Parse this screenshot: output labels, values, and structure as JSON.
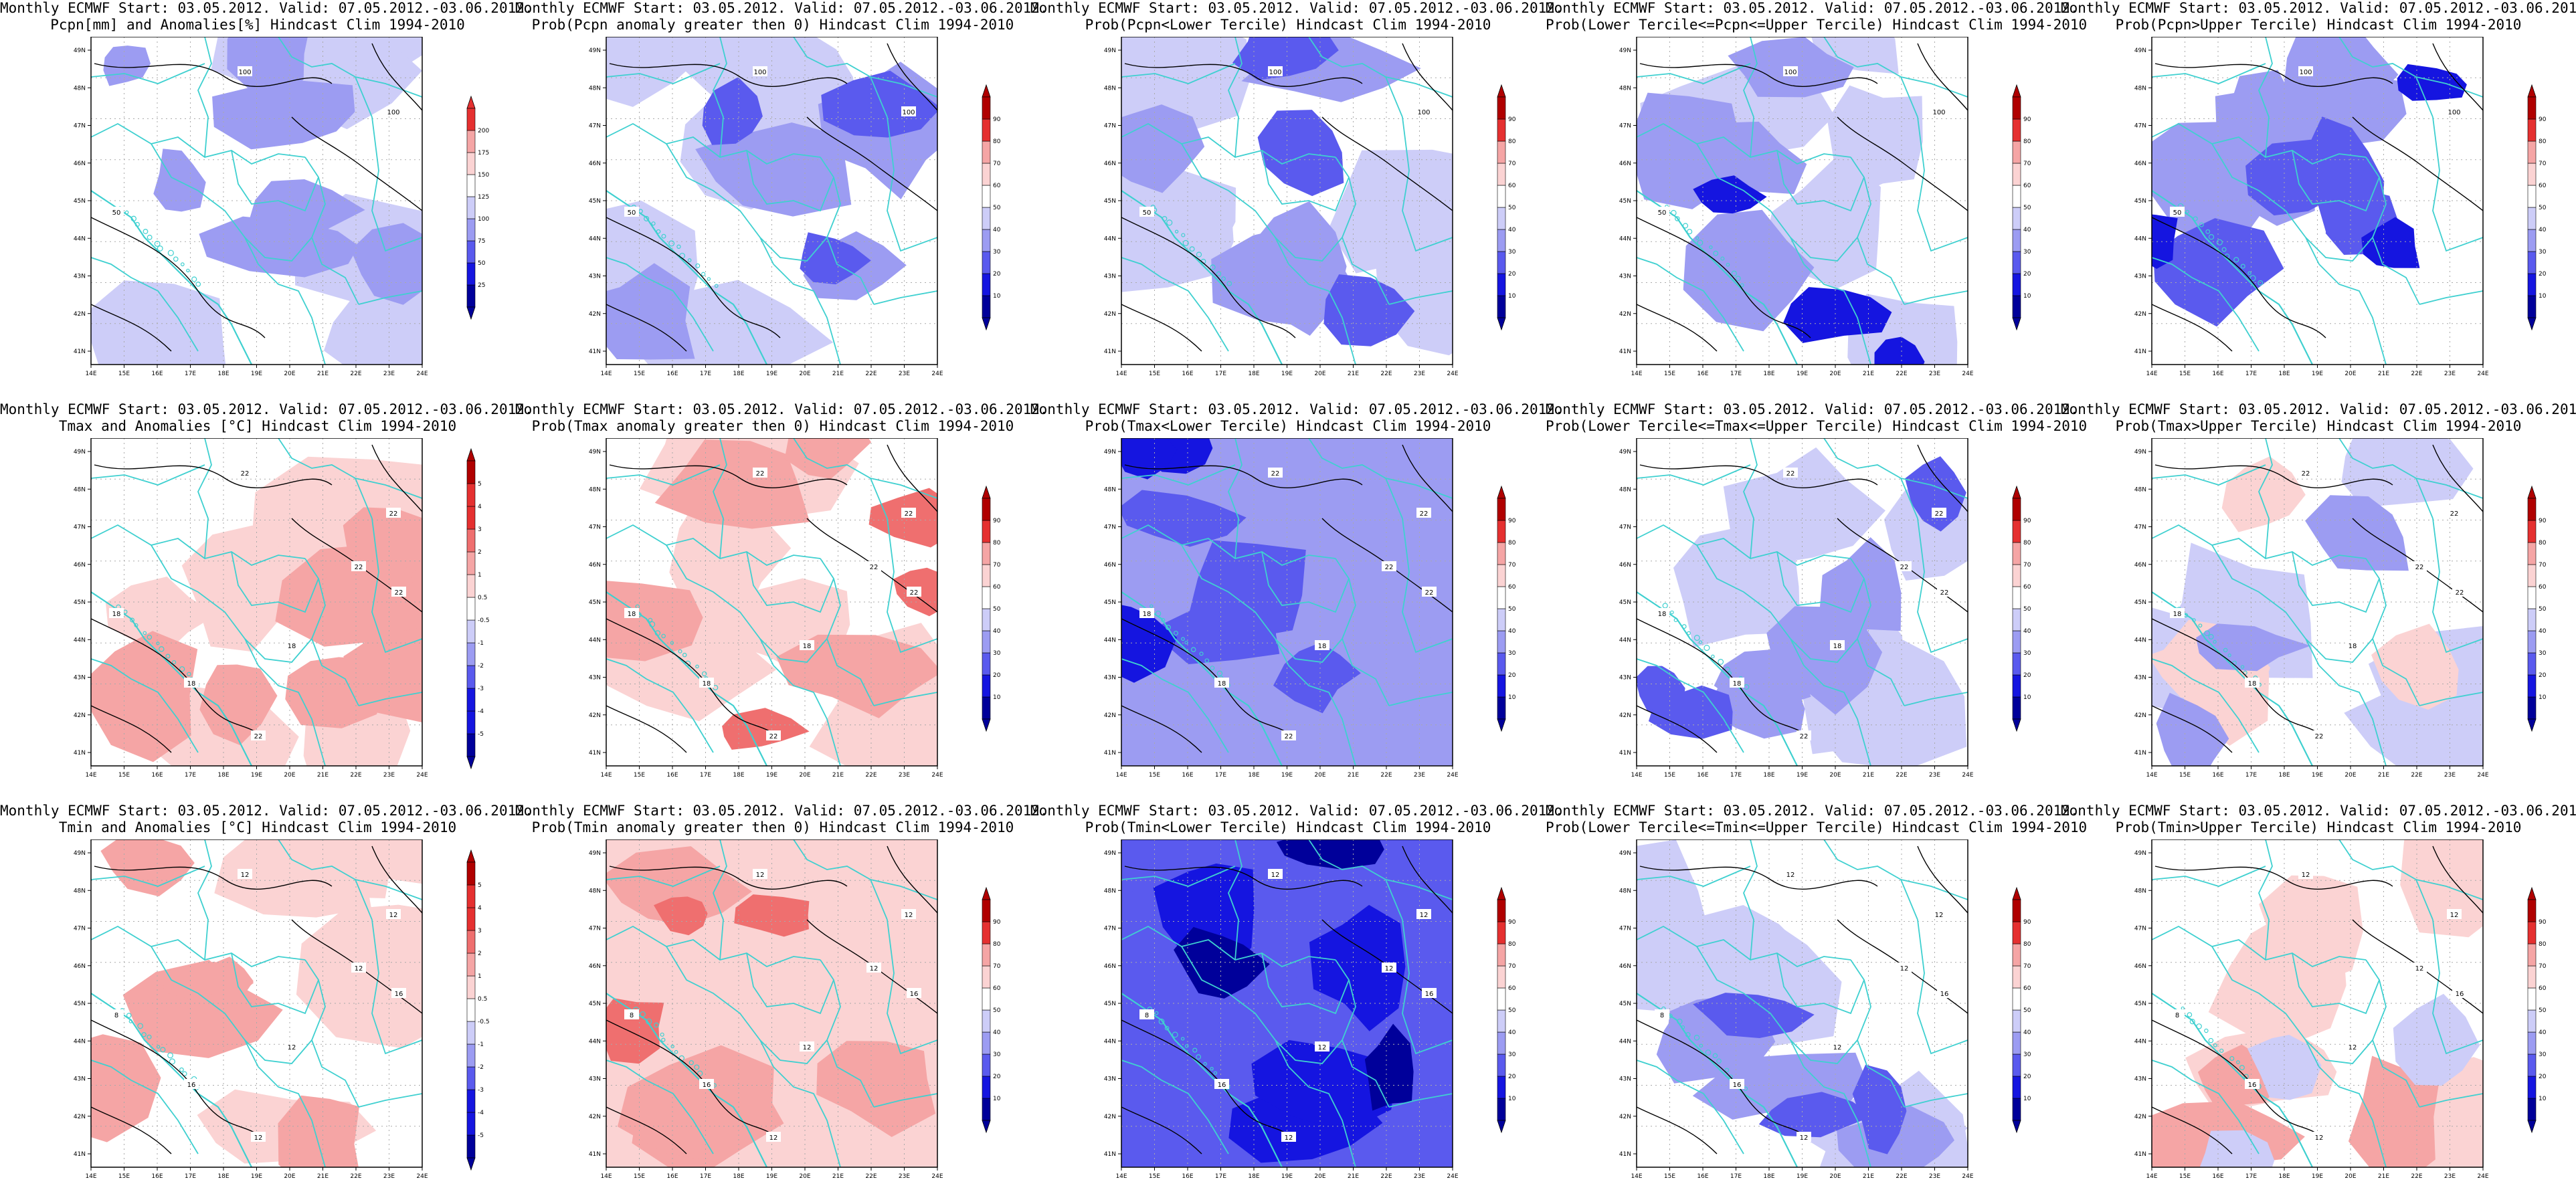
{
  "header_line": "Monthly ECMWF Start: 03.05.2012. Valid: 07.05.2012.-03.06.2012.",
  "lon_ticks": [
    "14E",
    "15E",
    "16E",
    "17E",
    "18E",
    "19E",
    "20E",
    "21E",
    "22E",
    "23E",
    "24E"
  ],
  "lat_ticks": [
    "41N",
    "42N",
    "43N",
    "44N",
    "45N",
    "46N",
    "47N",
    "48N",
    "49N"
  ],
  "colorbars": {
    "pcpn_anom": [
      "25",
      "50",
      "75",
      "100",
      "125",
      "150",
      "175",
      "200"
    ],
    "temp_anom": [
      "-5",
      "-4",
      "-3",
      "-2",
      "-1",
      "-0.5",
      "0.5",
      "1",
      "2",
      "3",
      "4",
      "5"
    ],
    "prob": [
      "10",
      "20",
      "30",
      "40",
      "50",
      "60",
      "70",
      "80",
      "90"
    ]
  },
  "colors": {
    "blues": [
      "#00009a",
      "#1515e0",
      "#5a5aee",
      "#9c9cf2",
      "#cdcdf8"
    ],
    "reds": [
      "#fbd3d3",
      "#f5a5a5",
      "#ef6f6f",
      "#e53030",
      "#b00000"
    ],
    "border": "#3fd0d0",
    "contour": "#000000"
  },
  "panels": [
    {
      "title": "Pcpn[mm] and Anomalies[%] Hindcast Clim 1994-2010",
      "bar": "pcpn_anom",
      "contour_labels": [
        "100",
        "100",
        "50"
      ]
    },
    {
      "title": "Prob(Pcpn anomaly greater then 0) Hindcast Clim 1994-2010",
      "bar": "prob",
      "contour_labels": [
        "100",
        "100",
        "50"
      ]
    },
    {
      "title": "Prob(Pcpn<Lower Tercile) Hindcast Clim 1994-2010",
      "bar": "prob",
      "contour_labels": [
        "100",
        "100",
        "50"
      ]
    },
    {
      "title": "Prob(Lower Tercile<=Pcpn<=Upper Tercile) Hindcast Clim 1994-2010",
      "bar": "prob",
      "contour_labels": [
        "100",
        "100",
        "50"
      ]
    },
    {
      "title": "Prob(Pcpn>Upper Tercile) Hindcast Clim 1994-2010",
      "bar": "prob",
      "contour_labels": [
        "100",
        "100",
        "50"
      ]
    },
    {
      "title": "Tmax and Anomalies [°C] Hindcast Clim 1994-2010",
      "bar": "temp_anom",
      "contour_labels": [
        "22",
        "22",
        "18",
        "22",
        "22",
        "18",
        "18",
        "22"
      ]
    },
    {
      "title": "Prob(Tmax anomaly greater then 0) Hindcast Clim 1994-2010",
      "bar": "prob",
      "contour_labels": [
        "22",
        "22",
        "18",
        "22",
        "22",
        "18",
        "18",
        "22"
      ]
    },
    {
      "title": "Prob(Tmax<Lower Tercile) Hindcast Clim 1994-2010",
      "bar": "prob",
      "contour_labels": [
        "22",
        "22",
        "18",
        "22",
        "22",
        "18",
        "18",
        "22"
      ]
    },
    {
      "title": "Prob(Lower Tercile<=Tmax<=Upper Tercile) Hindcast Clim 1994-2010",
      "bar": "prob",
      "contour_labels": [
        "22",
        "22",
        "18",
        "22",
        "22",
        "18",
        "18",
        "22"
      ]
    },
    {
      "title": "Prob(Tmax>Upper Tercile) Hindcast Clim 1994-2010",
      "bar": "prob",
      "contour_labels": [
        "22",
        "22",
        "18",
        "22",
        "22",
        "18",
        "18",
        "22"
      ]
    },
    {
      "title": "Tmin and Anomalies [°C] Hindcast Clim 1994-2010",
      "bar": "temp_anom",
      "contour_labels": [
        "12",
        "12",
        "8",
        "12",
        "12",
        "16",
        "12",
        "16"
      ]
    },
    {
      "title": "Prob(Tmin anomaly greater then 0) Hindcast Clim 1994-2010",
      "bar": "prob",
      "contour_labels": [
        "12",
        "12",
        "8",
        "12",
        "12",
        "16",
        "12",
        "16"
      ]
    },
    {
      "title": "Prob(Tmin<Lower Tercile) Hindcast Clim 1994-2010",
      "bar": "prob",
      "contour_labels": [
        "12",
        "12",
        "8",
        "12",
        "12",
        "16",
        "12",
        "16"
      ]
    },
    {
      "title": "Prob(Lower Tercile<=Tmin<=Upper Tercile) Hindcast Clim 1994-2010",
      "bar": "prob",
      "contour_labels": [
        "12",
        "12",
        "8",
        "12",
        "12",
        "16",
        "12",
        "16"
      ]
    },
    {
      "title": "Prob(Tmin>Upper Tercile) Hindcast Clim 1994-2010",
      "bar": "prob",
      "contour_labels": [
        "12",
        "12",
        "8",
        "12",
        "12",
        "16",
        "12",
        "16"
      ]
    }
  ]
}
